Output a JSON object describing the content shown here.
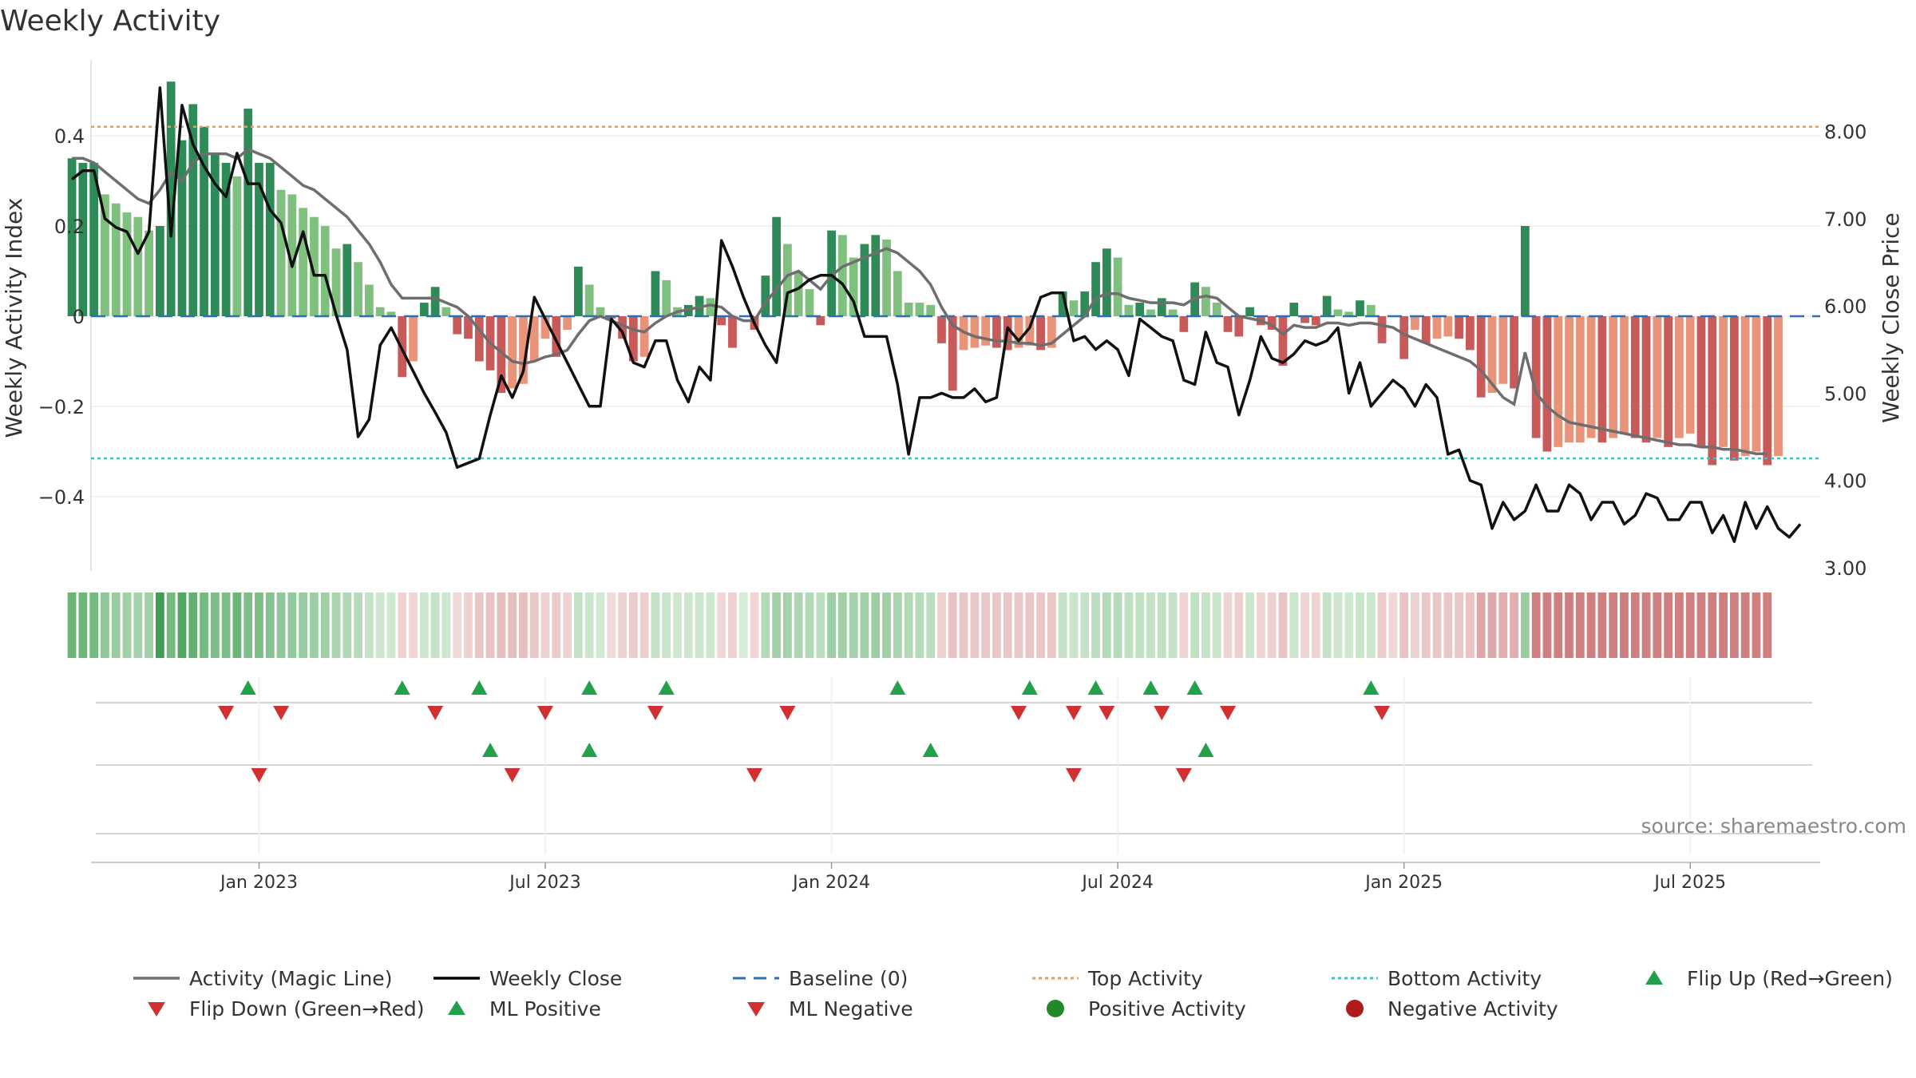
{
  "chart_data": {
    "type": "bar",
    "title": "Weekly Activity",
    "ylabel_left": "Weekly Activity Index",
    "ylabel_right": "Weekly Close Price",
    "source": "source: sharemaestro.com",
    "y_left_range": [
      -0.56,
      0.56
    ],
    "y_left_ticks": [
      "0.4",
      "0.2",
      "0",
      "−0.2",
      "−0.4"
    ],
    "y_left_tick_values": [
      0.4,
      0.2,
      0,
      -0.2,
      -0.4
    ],
    "y_right_range": [
      3.0,
      8.8
    ],
    "y_right_ticks": [
      "8.00",
      "7.00",
      "6.00",
      "5.00",
      "4.00",
      "3.00"
    ],
    "y_right_tick_values": [
      8,
      7,
      6,
      5,
      4,
      3
    ],
    "x_range": [
      -15.5,
      141.5
    ],
    "x_tick_labels": [
      "Jan 2023",
      "Jul 2023",
      "Jan 2024",
      "Jul 2024",
      "Jan 2025",
      "Jul 2025"
    ],
    "x_tick_weeks": [
      0,
      26,
      52,
      78,
      104,
      130
    ],
    "top_activity": 0.42,
    "bottom_activity": -0.315,
    "baseline": 0,
    "activity_bars": [
      0.35,
      0.34,
      0.34,
      0.27,
      0.25,
      0.23,
      0.22,
      0.19,
      0.2,
      0.52,
      0.39,
      0.47,
      0.42,
      0.36,
      0.34,
      0.31,
      0.46,
      0.34,
      0.34,
      0.28,
      0.27,
      0.24,
      0.22,
      0.2,
      0.15,
      0.16,
      0.12,
      0.07,
      0.02,
      0.01,
      -0.135,
      -0.1,
      0.03,
      0.065,
      0.02,
      -0.04,
      -0.05,
      -0.1,
      -0.12,
      -0.17,
      -0.16,
      -0.15,
      -0.1,
      -0.05,
      -0.09,
      -0.03,
      0.11,
      0.07,
      0.02,
      -0.005,
      -0.05,
      -0.1,
      -0.09,
      0.1,
      0.08,
      0.02,
      0.025,
      0.045,
      0.04,
      -0.02,
      -0.07,
      0.0,
      -0.03,
      0.09,
      0.22,
      0.16,
      0.1,
      0.06,
      -0.02,
      0.19,
      0.18,
      0.13,
      0.16,
      0.18,
      0.17,
      0.1,
      0.03,
      0.03,
      0.025,
      -0.06,
      -0.165,
      -0.075,
      -0.07,
      -0.065,
      -0.07,
      -0.075,
      -0.07,
      -0.065,
      -0.075,
      -0.07,
      0.055,
      0.035,
      0.055,
      0.12,
      0.15,
      0.13,
      0.025,
      0.03,
      0.015,
      0.04,
      0.015,
      -0.035,
      0.075,
      0.065,
      0.03,
      -0.035,
      -0.045,
      0.02,
      -0.02,
      -0.03,
      -0.11,
      0.03,
      -0.015,
      -0.02,
      0.045,
      0.015,
      0.01,
      0.035,
      0.025,
      -0.06,
      0.0,
      -0.095,
      -0.03,
      -0.06,
      -0.05,
      -0.045,
      -0.05,
      -0.075,
      -0.18,
      -0.17,
      -0.15,
      -0.16,
      0.2,
      -0.27,
      -0.3,
      -0.29,
      -0.28,
      -0.28,
      -0.27,
      -0.28,
      -0.27,
      -0.26,
      -0.27,
      -0.28,
      -0.27,
      -0.29,
      -0.27,
      -0.26,
      -0.29,
      -0.33,
      -0.29,
      -0.32,
      -0.31,
      -0.3,
      -0.33,
      -0.31
    ],
    "magic_line": [
      0.35,
      0.35,
      0.34,
      0.32,
      0.3,
      0.28,
      0.26,
      0.25,
      0.28,
      0.32,
      0.3,
      0.34,
      0.36,
      0.36,
      0.36,
      0.35,
      0.37,
      0.36,
      0.35,
      0.33,
      0.31,
      0.29,
      0.28,
      0.26,
      0.24,
      0.22,
      0.19,
      0.16,
      0.12,
      0.07,
      0.04,
      0.04,
      0.04,
      0.04,
      0.03,
      0.02,
      0.0,
      -0.03,
      -0.06,
      -0.08,
      -0.1,
      -0.105,
      -0.1,
      -0.09,
      -0.085,
      -0.075,
      -0.04,
      -0.01,
      0.0,
      -0.01,
      -0.02,
      -0.03,
      -0.035,
      -0.015,
      0.0,
      0.01,
      0.015,
      0.02,
      0.025,
      0.02,
      0.0,
      -0.01,
      -0.01,
      0.03,
      0.06,
      0.09,
      0.1,
      0.08,
      0.06,
      0.09,
      0.11,
      0.12,
      0.13,
      0.14,
      0.15,
      0.14,
      0.12,
      0.1,
      0.07,
      0.02,
      -0.02,
      -0.035,
      -0.045,
      -0.05,
      -0.055,
      -0.055,
      -0.06,
      -0.06,
      -0.065,
      -0.06,
      -0.04,
      -0.02,
      0.0,
      0.04,
      0.05,
      0.05,
      0.04,
      0.035,
      0.03,
      0.03,
      0.03,
      0.025,
      0.04,
      0.045,
      0.04,
      0.02,
      0.0,
      -0.005,
      -0.01,
      -0.02,
      -0.04,
      -0.02,
      -0.025,
      -0.025,
      -0.015,
      -0.015,
      -0.02,
      -0.015,
      -0.015,
      -0.02,
      -0.025,
      -0.04,
      -0.05,
      -0.06,
      -0.07,
      -0.08,
      -0.09,
      -0.1,
      -0.12,
      -0.15,
      -0.18,
      -0.195,
      -0.08,
      -0.17,
      -0.2,
      -0.22,
      -0.235,
      -0.24,
      -0.245,
      -0.25,
      -0.255,
      -0.26,
      -0.265,
      -0.27,
      -0.275,
      -0.28,
      -0.285,
      -0.285,
      -0.29,
      -0.29,
      -0.295,
      -0.295,
      -0.3,
      -0.305,
      -0.305
    ],
    "weekly_close": [
      7.45,
      7.55,
      7.55,
      7.0,
      6.9,
      6.85,
      6.6,
      6.85,
      8.5,
      6.8,
      8.3,
      7.85,
      7.6,
      7.4,
      7.25,
      7.75,
      7.4,
      7.4,
      7.1,
      6.95,
      6.45,
      6.85,
      6.35,
      6.35,
      5.9,
      5.5,
      4.5,
      4.7,
      5.55,
      5.75,
      5.5,
      5.25,
      5.0,
      4.78,
      4.55,
      4.15,
      4.2,
      4.25,
      4.75,
      5.2,
      4.95,
      5.25,
      6.1,
      5.85,
      5.6,
      5.35,
      5.1,
      4.85,
      4.85,
      5.85,
      5.7,
      5.35,
      5.3,
      5.6,
      5.6,
      5.15,
      4.9,
      5.3,
      5.15,
      6.75,
      6.45,
      6.1,
      5.8,
      5.55,
      5.35,
      6.15,
      6.2,
      6.3,
      6.35,
      6.35,
      6.25,
      6.05,
      5.65,
      5.65,
      5.65,
      5.1,
      4.3,
      4.95,
      4.95,
      5.0,
      4.95,
      4.95,
      5.05,
      4.9,
      4.95,
      5.75,
      5.6,
      5.75,
      6.1,
      6.15,
      6.15,
      5.6,
      5.65,
      5.5,
      5.6,
      5.5,
      5.2,
      5.85,
      5.75,
      5.65,
      5.6,
      5.15,
      5.1,
      5.7,
      5.35,
      5.3,
      4.75,
      5.15,
      5.65,
      5.4,
      5.35,
      5.45,
      5.6,
      5.55,
      5.6,
      5.75,
      5.0,
      5.35,
      4.85,
      5.0,
      5.15,
      5.05,
      4.85,
      5.1,
      4.95,
      4.3,
      4.35,
      4.0,
      3.95,
      3.45,
      3.75,
      3.55,
      3.65,
      3.95,
      3.65,
      3.65,
      3.95,
      3.85,
      3.55,
      3.75,
      3.75,
      3.5,
      3.6,
      3.85,
      3.8,
      3.55,
      3.55,
      3.75,
      3.75,
      3.4,
      3.6,
      3.3,
      3.75,
      3.45,
      3.7,
      3.45,
      3.35,
      3.5
    ],
    "heat_strip": [
      0.6,
      0.6,
      0.55,
      0.4,
      0.35,
      0.3,
      0.28,
      0.3,
      0.85,
      0.55,
      0.75,
      0.65,
      0.55,
      0.5,
      0.5,
      0.6,
      0.5,
      0.5,
      0.45,
      0.4,
      0.38,
      0.35,
      0.32,
      0.3,
      0.25,
      0.22,
      0.18,
      0.1,
      0.05,
      0.04,
      -0.05,
      -0.03,
      0.05,
      0.1,
      0.05,
      -0.02,
      -0.05,
      -0.1,
      -0.12,
      -0.15,
      -0.15,
      -0.14,
      -0.1,
      -0.06,
      -0.08,
      -0.05,
      0.1,
      0.07,
      0.03,
      -0.01,
      -0.05,
      -0.08,
      -0.07,
      0.1,
      0.08,
      0.05,
      0.05,
      0.06,
      0.05,
      -0.02,
      -0.06,
      0.0,
      -0.03,
      0.2,
      0.3,
      0.28,
      0.24,
      0.2,
      0.15,
      0.32,
      0.3,
      0.28,
      0.3,
      0.32,
      0.3,
      0.25,
      0.2,
      0.18,
      0.15,
      -0.06,
      -0.12,
      -0.1,
      -0.1,
      -0.1,
      -0.1,
      -0.1,
      -0.1,
      -0.1,
      -0.1,
      -0.1,
      0.1,
      0.08,
      0.1,
      0.15,
      0.2,
      0.18,
      0.12,
      0.12,
      0.1,
      0.12,
      0.1,
      -0.04,
      0.12,
      0.1,
      0.08,
      -0.04,
      -0.06,
      0.05,
      -0.04,
      -0.06,
      -0.12,
      0.06,
      -0.04,
      -0.04,
      0.1,
      0.05,
      0.04,
      0.08,
      0.06,
      -0.08,
      -0.02,
      -0.12,
      -0.06,
      -0.1,
      -0.1,
      -0.1,
      -0.1,
      -0.12,
      -0.25,
      -0.25,
      -0.22,
      -0.22,
      0.35,
      -0.45,
      -0.45,
      -0.45,
      -0.45,
      -0.45,
      -0.45,
      -0.45,
      -0.45,
      -0.45,
      -0.45,
      -0.45,
      -0.45,
      -0.45,
      -0.45,
      -0.45,
      -0.45,
      -0.45,
      -0.45,
      -0.45,
      -0.45,
      -0.45,
      -0.45
    ],
    "flip_up_weeks": [
      -1,
      13,
      20,
      30,
      37,
      58,
      70,
      76,
      81,
      85,
      101
    ],
    "flip_down_weeks": [
      -3,
      2,
      16,
      26,
      36,
      48,
      69,
      74,
      77,
      82,
      88,
      102
    ],
    "ml_positive_weeks": [
      21,
      30,
      61,
      86
    ],
    "ml_negative_weeks": [
      0,
      23,
      45,
      74,
      84
    ],
    "legend": [
      {
        "label": "Activity (Magic Line)",
        "kind": "line",
        "color": "#6e6e6e"
      },
      {
        "label": "Weekly Close",
        "kind": "line",
        "color": "#000000"
      },
      {
        "label": "Baseline (0)",
        "kind": "dashed",
        "color": "#2c6fb5"
      },
      {
        "label": "Top Activity",
        "kind": "dotted",
        "color": "#e8a060"
      },
      {
        "label": "Bottom Activity",
        "kind": "dotted",
        "color": "#2ec7cf"
      },
      {
        "label": "Flip Up (Red→Green)",
        "kind": "tri-up",
        "color": "#22a04a"
      },
      {
        "label": "Flip Down (Green→Red)",
        "kind": "tri-down",
        "color": "#d23030"
      },
      {
        "label": "ML Positive",
        "kind": "tri-up",
        "color": "#22a04a"
      },
      {
        "label": "ML Negative",
        "kind": "tri-down",
        "color": "#d23030"
      },
      {
        "label": "Positive Activity",
        "kind": "dot",
        "color": "#22882a"
      },
      {
        "label": "Negative Activity",
        "kind": "dot",
        "color": "#b01c1c"
      }
    ],
    "colors": {
      "pos_dark": "#2e8b57",
      "pos_light": "#7fc07f",
      "neg_dark": "#c95a5a",
      "neg_light": "#e8937a",
      "up": "#22a04a",
      "down": "#d23030"
    }
  }
}
